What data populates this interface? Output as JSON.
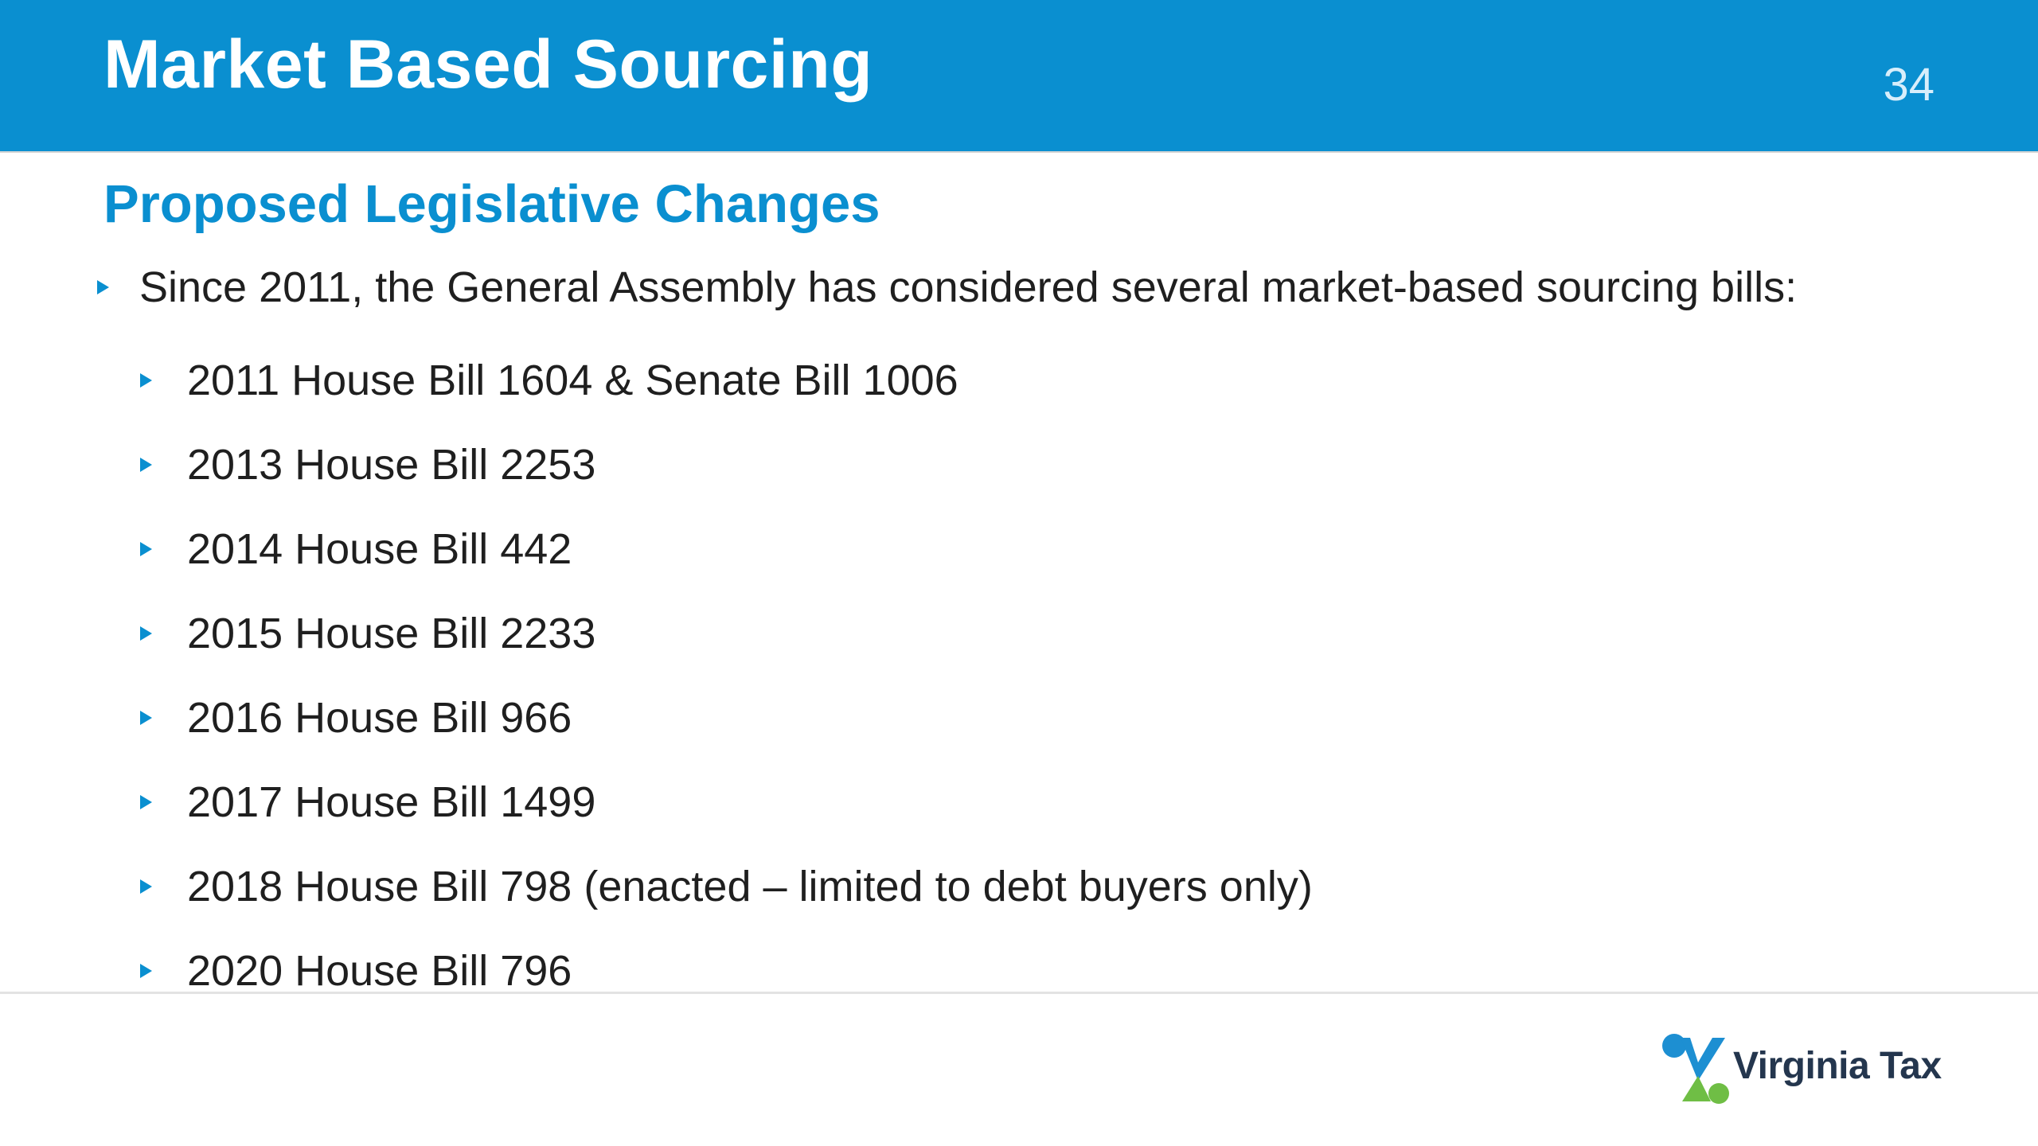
{
  "slide": {
    "title": "Market Based Sourcing",
    "page_number": "34",
    "subtitle": "Proposed Legislative Changes",
    "lead_bullet": "Since 2011, the General Assembly has considered several market-based sourcing bills:",
    "bills": [
      "2011 House Bill 1604 & Senate Bill 1006",
      "2013 House Bill 2253",
      "2014 House Bill 442",
      "2015 House Bill 2233",
      "2016 House Bill 966",
      "2017 House Bill 1499",
      "2018 House Bill 798 (enacted – limited to debt buyers only)",
      "2020 House Bill 796"
    ]
  },
  "footer": {
    "logo_text": "Virginia Tax",
    "logo_icon": "virginia-tax-logo-icon"
  },
  "colors": {
    "header_blue": "#0a8fd0",
    "text_dark": "#1f1f1f",
    "logo_navy": "#24364e",
    "logo_green": "#6fbe45",
    "logo_blue": "#1d8fd2"
  }
}
